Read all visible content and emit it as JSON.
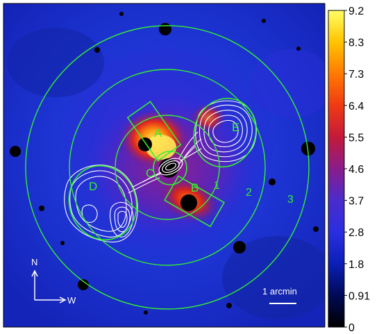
{
  "region_labels": {
    "A": "A",
    "B": "B",
    "C": "C",
    "D": "D",
    "E": "E"
  },
  "ring_labels": [
    "1",
    "2",
    "3"
  ],
  "compass": {
    "north": "N",
    "west": "W"
  },
  "scale_bar_label": "1 arcmin",
  "colorbar": {
    "ticks": [
      "9.2",
      "8.3",
      "7.3",
      "6.4",
      "5.5",
      "4.6",
      "3.7",
      "2.8",
      "1.8",
      "0.91",
      "0"
    ],
    "colormap": [
      "#000000",
      "#000a55",
      "#0b1fb8",
      "#2a2ee0",
      "#4a2ccc",
      "#8a1c8c",
      "#c41a3a",
      "#ef3a14",
      "#ff7a00",
      "#ffc400",
      "#ffff66"
    ]
  },
  "colors": {
    "overlay_green": "#33ee33",
    "contour_white": "#ffffff",
    "background_blue": "#1a2fcf"
  }
}
